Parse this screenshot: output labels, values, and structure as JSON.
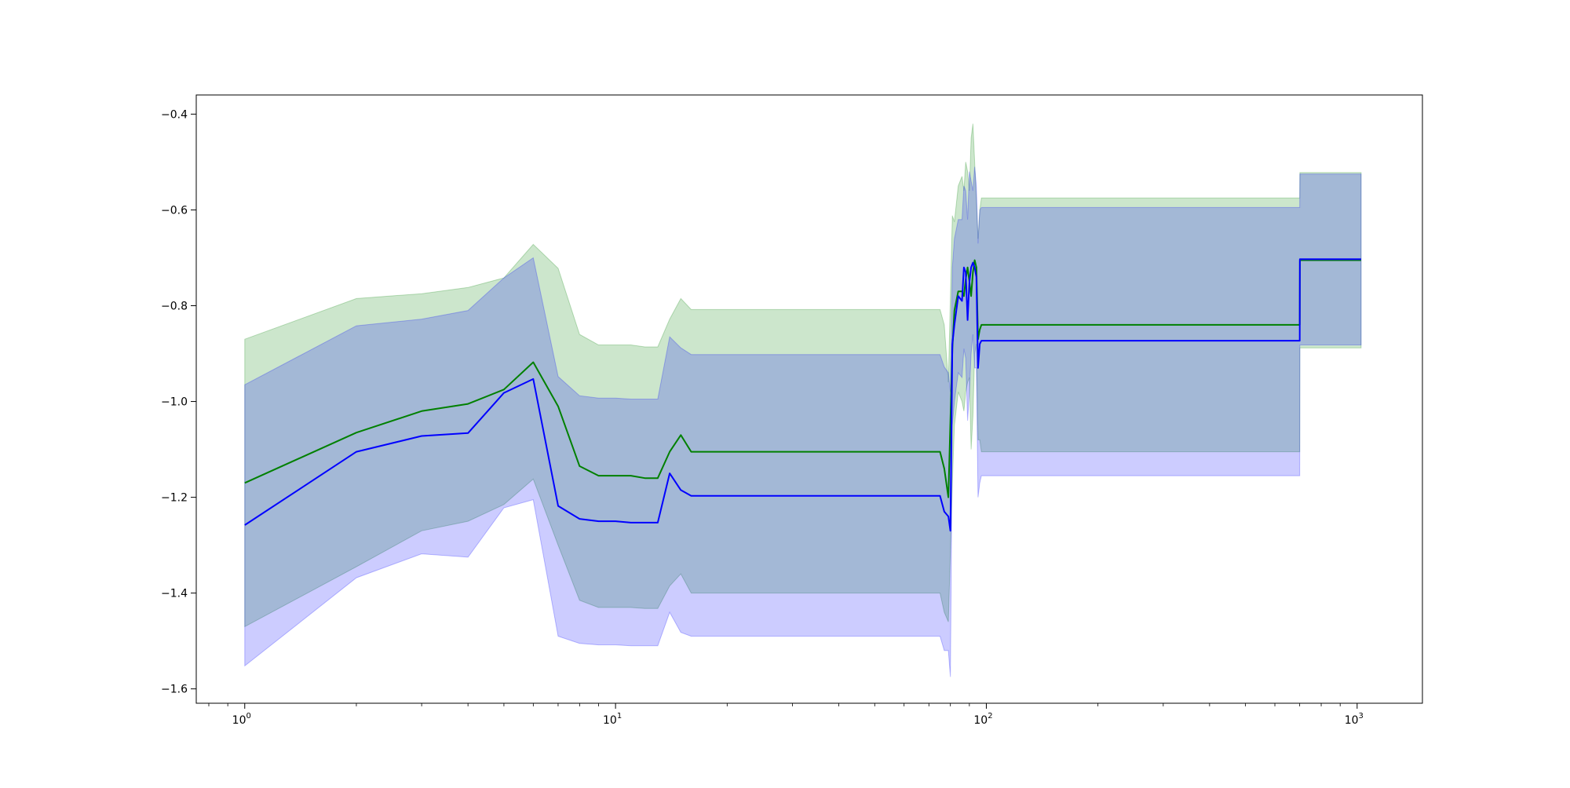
{
  "chart_data": {
    "type": "line",
    "xscale": "log",
    "xlim": [
      0.74,
      1500
    ],
    "ylim": [
      -1.63,
      -0.36
    ],
    "grid": false,
    "legend": "none",
    "x_ticks": [
      {
        "value": 1,
        "base": "10",
        "exp": "0"
      },
      {
        "value": 10,
        "base": "10",
        "exp": "1"
      },
      {
        "value": 100,
        "base": "10",
        "exp": "2"
      },
      {
        "value": 1000,
        "base": "10",
        "exp": "3"
      }
    ],
    "y_ticks": [
      {
        "value": -0.4,
        "label": "−0.4"
      },
      {
        "value": -0.6,
        "label": "−0.6"
      },
      {
        "value": -0.8,
        "label": "−0.8"
      },
      {
        "value": -1.0,
        "label": "−1.0"
      },
      {
        "value": -1.2,
        "label": "−1.2"
      },
      {
        "value": -1.4,
        "label": "−1.4"
      },
      {
        "value": -1.6,
        "label": "−1.6"
      }
    ],
    "series": [
      {
        "color": "#008000",
        "band_color": "#008000",
        "x": [
          1,
          2,
          3,
          4,
          5,
          6,
          7,
          8,
          9,
          11,
          12,
          13,
          14,
          15,
          16,
          75,
          77,
          79,
          81,
          82,
          84,
          86,
          87,
          88,
          89,
          90,
          91,
          92,
          93,
          94,
          95,
          96,
          97,
          98,
          700,
          701,
          1025
        ],
        "y": [
          -1.17,
          -1.065,
          -1.02,
          -1.005,
          -0.975,
          -0.918,
          -1.01,
          -1.135,
          -1.155,
          -1.155,
          -1.16,
          -1.16,
          -1.105,
          -1.07,
          -1.105,
          -1.105,
          -1.14,
          -1.2,
          -0.89,
          -0.81,
          -0.77,
          -0.77,
          -0.78,
          -0.745,
          -0.72,
          -0.75,
          -0.78,
          -0.73,
          -0.705,
          -0.72,
          -0.87,
          -0.85,
          -0.84,
          -0.84,
          -0.84,
          -0.705,
          -0.705
        ],
        "upper": [
          -0.87,
          -0.785,
          -0.775,
          -0.762,
          -0.742,
          -0.672,
          -0.722,
          -0.86,
          -0.882,
          -0.882,
          -0.886,
          -0.886,
          -0.828,
          -0.785,
          -0.808,
          -0.808,
          -0.84,
          -0.96,
          -0.612,
          -0.625,
          -0.55,
          -0.53,
          -0.56,
          -0.5,
          -0.52,
          -0.56,
          -0.45,
          -0.42,
          -0.5,
          -0.58,
          -0.66,
          -0.6,
          -0.575,
          -0.575,
          -0.575,
          -0.522,
          -0.522
        ],
        "lower": [
          -1.47,
          -1.345,
          -1.27,
          -1.25,
          -1.215,
          -1.162,
          -1.3,
          -1.415,
          -1.43,
          -1.43,
          -1.432,
          -1.432,
          -1.385,
          -1.36,
          -1.4,
          -1.4,
          -1.44,
          -1.46,
          -1.17,
          -1.05,
          -0.98,
          -1.0,
          -1.02,
          -0.98,
          -0.96,
          -0.95,
          -1.1,
          -1.03,
          -0.9,
          -0.88,
          -1.08,
          -1.08,
          -1.105,
          -1.105,
          -1.105,
          -0.888,
          -0.888
        ]
      },
      {
        "color": "#0000ff",
        "band_color": "#0000ff",
        "x": [
          1,
          2,
          3,
          4,
          5,
          6,
          7,
          8,
          9,
          10,
          11,
          13,
          14,
          15,
          16,
          75,
          77,
          79,
          80,
          81,
          82,
          84,
          86,
          87,
          88,
          89,
          90,
          91,
          92,
          93,
          94,
          95,
          96,
          97,
          98,
          700,
          701,
          1025
        ],
        "y": [
          -1.258,
          -1.105,
          -1.072,
          -1.066,
          -0.982,
          -0.953,
          -1.218,
          -1.245,
          -1.25,
          -1.25,
          -1.253,
          -1.253,
          -1.15,
          -1.185,
          -1.197,
          -1.197,
          -1.23,
          -1.24,
          -1.27,
          -0.88,
          -0.84,
          -0.78,
          -0.79,
          -0.72,
          -0.73,
          -0.83,
          -0.75,
          -0.72,
          -0.71,
          -0.72,
          -0.74,
          -0.93,
          -0.88,
          -0.873,
          -0.873,
          -0.873,
          -0.703,
          -0.703
        ],
        "upper": [
          -0.965,
          -0.842,
          -0.828,
          -0.81,
          -0.742,
          -0.7,
          -0.948,
          -0.988,
          -0.993,
          -0.993,
          -0.995,
          -0.995,
          -0.865,
          -0.888,
          -0.902,
          -0.902,
          -0.928,
          -0.94,
          -0.98,
          -0.72,
          -0.66,
          -0.62,
          -0.62,
          -0.55,
          -0.56,
          -0.62,
          -0.52,
          -0.54,
          -0.56,
          -0.51,
          -0.55,
          -0.67,
          -0.6,
          -0.595,
          -0.595,
          -0.595,
          -0.525,
          -0.525
        ],
        "lower": [
          -1.552,
          -1.368,
          -1.318,
          -1.325,
          -1.222,
          -1.205,
          -1.49,
          -1.505,
          -1.508,
          -1.508,
          -1.51,
          -1.51,
          -1.44,
          -1.482,
          -1.49,
          -1.49,
          -1.52,
          -1.52,
          -1.575,
          -1.05,
          -1.0,
          -0.94,
          -0.95,
          -0.89,
          -0.91,
          -1.04,
          -0.98,
          -0.9,
          -0.86,
          -0.93,
          -0.93,
          -1.2,
          -1.17,
          -1.155,
          -1.155,
          -1.155,
          -0.882,
          -0.882
        ]
      }
    ]
  }
}
